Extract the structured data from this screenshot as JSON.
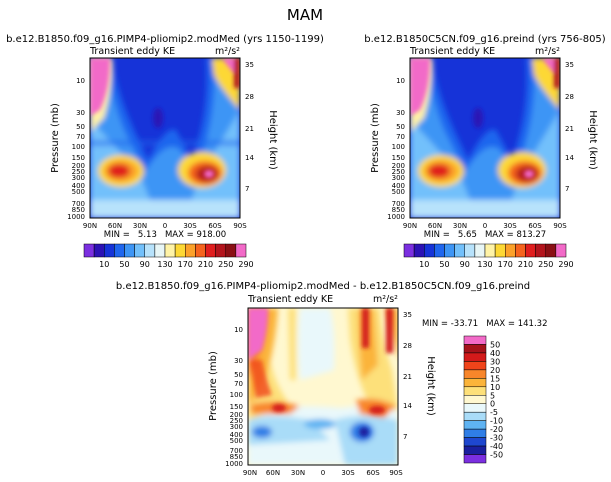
{
  "figure_title": "MAM",
  "chart_data": [
    {
      "type": "heatmap",
      "title": "b.e12.B1850.f09_g16.PIMP4-pliomip2.modMed (yrs 1150-1199)",
      "subtitle_left": "Transient eddy KE",
      "subtitle_right": "m²/s²",
      "ylabel": "Pressure (mb)",
      "ylabel_right": "Height (km)",
      "x_ticks": [
        "90N",
        "60N",
        "30N",
        "0",
        "30S",
        "60S",
        "90S"
      ],
      "y_ticks": [
        "10",
        "30",
        "50",
        "70",
        "100",
        "150",
        "200",
        "250",
        "300",
        "400",
        "500",
        "700",
        "850",
        "1000"
      ],
      "y_right_ticks": [
        "35",
        "28",
        "21",
        "14",
        "7"
      ],
      "stats": "MIN =   5.13   MAX = 918.00",
      "min": 5.13,
      "max": 918.0,
      "colorbar_labels": [
        "10",
        "50",
        "90",
        "130",
        "170",
        "210",
        "250",
        "290"
      ]
    },
    {
      "type": "heatmap",
      "title": "b.e12.B1850C5CN.f09_g16.preind (yrs 756-805)",
      "subtitle_left": "Transient eddy KE",
      "subtitle_right": "m²/s²",
      "ylabel": "Pressure (mb)",
      "ylabel_right": "Height (km)",
      "x_ticks": [
        "90N",
        "60N",
        "30N",
        "0",
        "30S",
        "60S",
        "90S"
      ],
      "y_ticks": [
        "10",
        "30",
        "50",
        "70",
        "100",
        "150",
        "200",
        "250",
        "300",
        "400",
        "500",
        "700",
        "850",
        "1000"
      ],
      "y_right_ticks": [
        "35",
        "28",
        "21",
        "14",
        "7"
      ],
      "stats": "MIN =   5.65   MAX = 813.27",
      "min": 5.65,
      "max": 813.27,
      "colorbar_labels": [
        "10",
        "50",
        "90",
        "130",
        "170",
        "210",
        "250",
        "290"
      ]
    },
    {
      "type": "heatmap",
      "title": "b.e12.B1850.f09_g16.PIMP4-pliomip2.modMed - b.e12.B1850C5CN.f09_g16.preind",
      "subtitle_left": "Transient eddy KE",
      "subtitle_right": "m²/s²",
      "ylabel": "Pressure (mb)",
      "ylabel_right": "Height (km)",
      "x_ticks": [
        "90N",
        "60N",
        "30N",
        "0",
        "30S",
        "60S",
        "90S"
      ],
      "y_ticks": [
        "10",
        "30",
        "50",
        "70",
        "100",
        "150",
        "200",
        "250",
        "300",
        "400",
        "500",
        "700",
        "850",
        "1000"
      ],
      "y_right_ticks": [
        "35",
        "28",
        "21",
        "14",
        "7"
      ],
      "stats": "MIN = -33.71   MAX = 141.32",
      "min": -33.71,
      "max": 141.32,
      "colorbar_labels": [
        "50",
        "40",
        "30",
        "20",
        "15",
        "10",
        "5",
        "0",
        "-5",
        "-10",
        "-20",
        "-30",
        "-40",
        "-50"
      ]
    }
  ],
  "colors": {
    "abs_scale": [
      "#7b2fe0",
      "#2c12b5",
      "#1633d8",
      "#1f66ee",
      "#3d95f5",
      "#72c0fb",
      "#b7e2fb",
      "#e8f6f6",
      "#fff3a6",
      "#fdd835",
      "#fba12a",
      "#f5631e",
      "#e01e1e",
      "#b3141c",
      "#8a0f14",
      "#f26ac8"
    ],
    "diff_scale": [
      "#f26ac8",
      "#a5121a",
      "#d31a1a",
      "#f0441a",
      "#f8862a",
      "#fbb43a",
      "#fde07a",
      "#fff8d0",
      "#e9f8fb",
      "#a9dcf8",
      "#5fb3f2",
      "#2f7ee6",
      "#1e47cf",
      "#1a1f9e",
      "#7b2fe0"
    ]
  }
}
